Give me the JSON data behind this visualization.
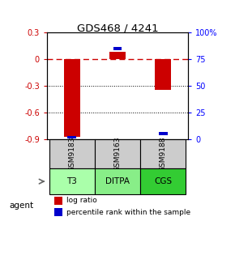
{
  "title": "GDS468 / 4241",
  "samples": [
    "GSM9183",
    "GSM9163",
    "GSM9188"
  ],
  "agents": [
    "T3",
    "DITPA",
    "CGS"
  ],
  "log_ratios": [
    -0.88,
    0.08,
    -0.35
  ],
  "percentile_ranks": [
    1.5,
    85.0,
    5.0
  ],
  "ylim_left": [
    -0.9,
    0.3
  ],
  "ylim_right": [
    0,
    100
  ],
  "yticks_left": [
    0.3,
    0,
    -0.3,
    -0.6,
    -0.9
  ],
  "yticks_right": [
    100,
    75,
    50,
    25,
    0
  ],
  "ytick_labels_left": [
    "0.3",
    "0",
    "-0.3",
    "-0.6",
    "-0.9"
  ],
  "ytick_labels_right": [
    "100%",
    "75",
    "50",
    "25",
    "0"
  ],
  "bar_color_red": "#cc0000",
  "bar_color_blue": "#0000cc",
  "agent_colors": [
    "#aaffaa",
    "#88ee88",
    "#33cc33"
  ],
  "gsm_bg": "#cccccc",
  "bar_width": 0.35
}
